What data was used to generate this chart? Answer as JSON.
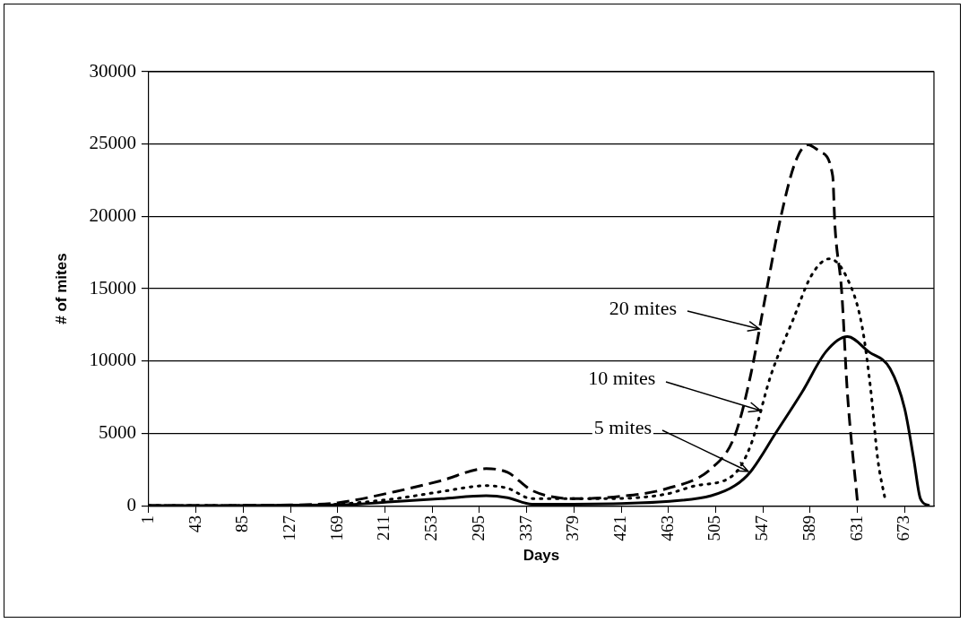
{
  "chart_data": {
    "type": "line",
    "xlabel": "Days",
    "ylabel": "# of mites",
    "xlim": [
      1,
      699
    ],
    "xticks": [
      1,
      43,
      85,
      127,
      169,
      211,
      253,
      295,
      337,
      379,
      421,
      463,
      505,
      547,
      589,
      631,
      673
    ],
    "ylim": [
      0,
      30000
    ],
    "yticks": [
      0,
      5000,
      10000,
      15000,
      20000,
      25000,
      30000
    ],
    "grid": "y",
    "legend": false,
    "marker": "none",
    "annotations": [
      {
        "text": "20 mites",
        "x": 544,
        "y": 12200
      },
      {
        "text": "10 mites",
        "x": 545,
        "y": 6600
      },
      {
        "text": "5 mites",
        "x": 534,
        "y": 2350
      }
    ],
    "series": [
      {
        "color": "#000000",
        "line_style": "dashed",
        "x": [
          1,
          127,
          169,
          220,
          261,
          301,
          320,
          342,
          380,
          421,
          461,
          501,
          522,
          536,
          550,
          563,
          576,
          587,
          598,
          609,
          611,
          617,
          622,
          631
        ],
        "values": [
          0,
          50,
          200,
          970,
          1730,
          2560,
          2300,
          1040,
          480,
          650,
          1170,
          2560,
          4840,
          9000,
          14800,
          20000,
          23800,
          24950,
          24460,
          22800,
          19350,
          14800,
          7880,
          280
        ]
      },
      {
        "color": "#000000",
        "line_style": "dotted",
        "x": [
          1,
          127,
          169,
          220,
          261,
          301,
          320,
          342,
          406,
          461,
          487,
          520,
          536,
          554,
          574,
          590,
          606,
          622,
          635,
          643,
          649,
          656
        ],
        "values": [
          0,
          30,
          100,
          480,
          970,
          1380,
          1200,
          480,
          480,
          800,
          1380,
          2070,
          4150,
          9000,
          12900,
          15900,
          17070,
          15700,
          12440,
          7880,
          3250,
          280
        ]
      },
      {
        "color": "#000000",
        "line_style": "solid",
        "x": [
          1,
          169,
          220,
          261,
          301,
          320,
          342,
          421,
          461,
          501,
          522,
          536,
          558,
          582,
          603,
          622,
          641,
          660,
          673,
          681,
          687,
          695
        ],
        "values": [
          0,
          50,
          280,
          480,
          690,
          550,
          100,
          150,
          280,
          690,
          1380,
          2350,
          4980,
          7880,
          10640,
          11680,
          10640,
          9470,
          6700,
          3250,
          480,
          0
        ]
      }
    ]
  }
}
